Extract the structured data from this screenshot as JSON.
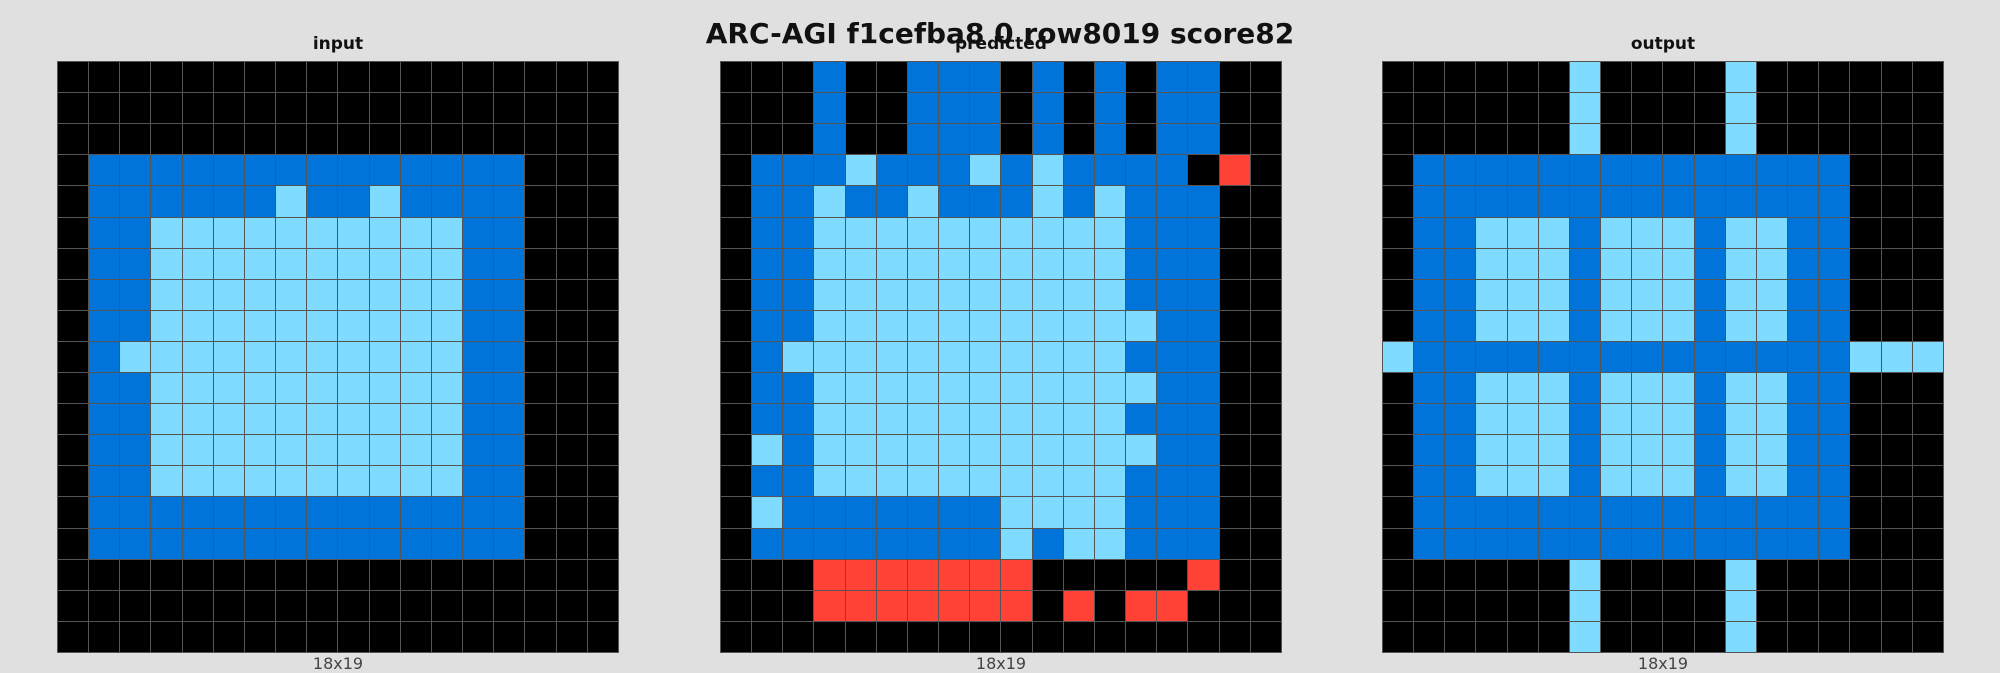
{
  "title": "ARC-AGI f1cefba8 0 row8019 score82",
  "colors": {
    "0": "#000000",
    "1": "#0074D9",
    "2": "#FF4136",
    "8": "#7FDBFF"
  },
  "panels": [
    {
      "label": "input",
      "dims": "18x19",
      "grid": [
        "000000000000000000",
        "000000000000000000",
        "000000000000000000",
        "011111111111111000",
        "011111181181111000",
        "011888888888811000",
        "011888888888811000",
        "011888888888811000",
        "011888888888811000",
        "018888888888811000",
        "011888888888811000",
        "011888888888811000",
        "011888888888811000",
        "011888888888811000",
        "011111111111111000",
        "011111111111111000",
        "000000000000000000",
        "000000000000000000",
        "000000000000000000"
      ]
    },
    {
      "label": "predicted",
      "dims": "18x19",
      "grid": [
        "000100111010101100",
        "000100111010101100",
        "000100111010101100",
        "011181118181111020",
        "011811811181811100",
        "011888888888811100",
        "011888888888811100",
        "011888888888811100",
        "011888888888881100",
        "018888888888811100",
        "011888888888881100",
        "011888888888811100",
        "081888888888881100",
        "011888888888811100",
        "081111111888811100",
        "011111111818811100",
        "000222222200000200",
        "000222222202022000",
        "000000000000000000"
      ]
    },
    {
      "label": "output",
      "dims": "18x19",
      "grid": [
        "000000800008000000",
        "000000800008000000",
        "000000800008000000",
        "011111111111111000",
        "011111111111111000",
        "011888188818811000",
        "011888188818811000",
        "011888188818811000",
        "011888188818811000",
        "811111111111111888",
        "011888188818811000",
        "011888188818811000",
        "011888188818811000",
        "011888188818811000",
        "011111111111111000",
        "011111111111111000",
        "000000800008000000",
        "000000800008000000",
        "000000800008000000"
      ]
    }
  ]
}
